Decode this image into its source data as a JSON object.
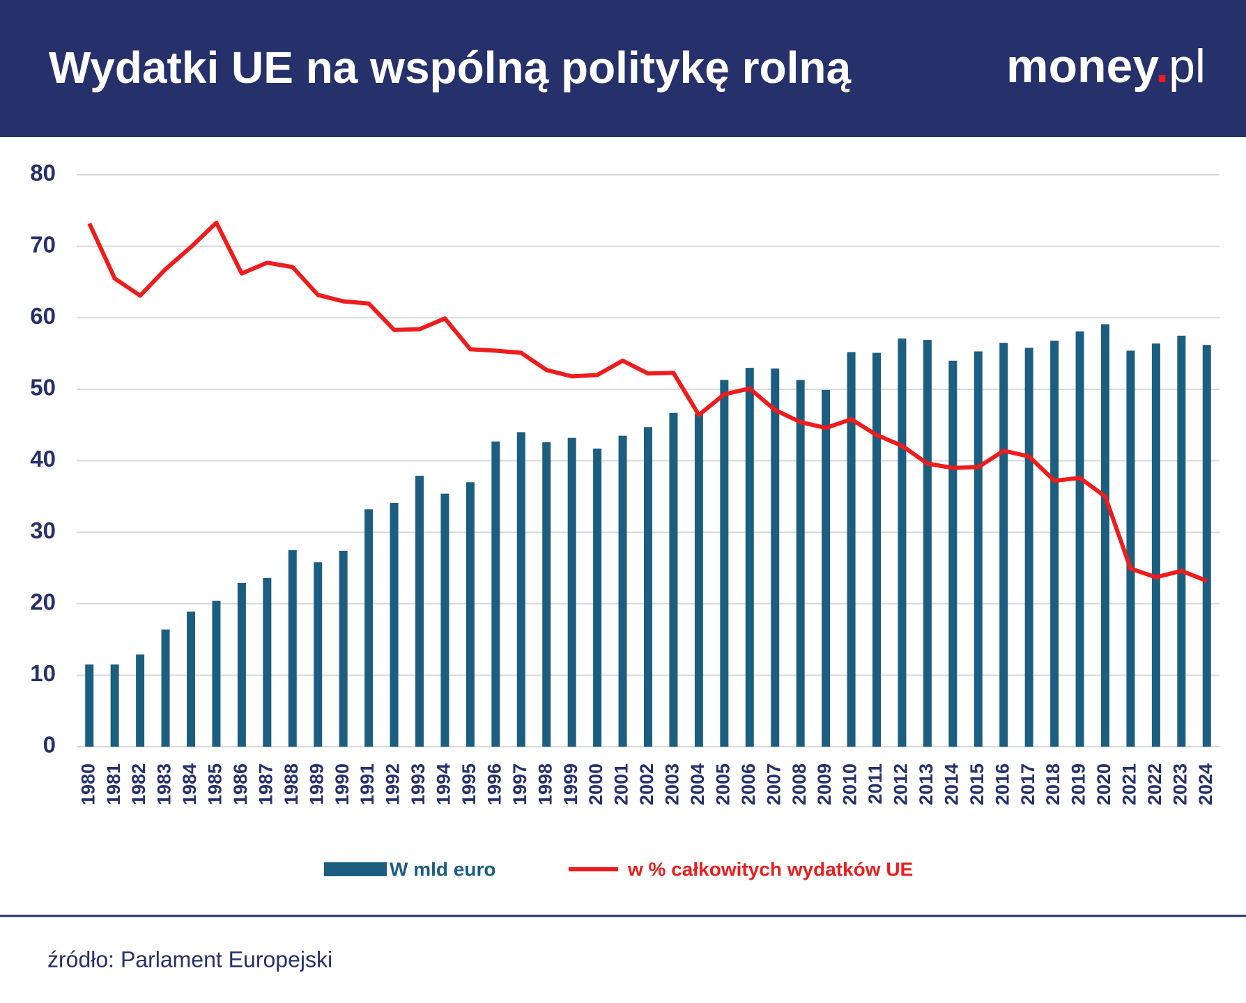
{
  "chart_data": {
    "type": "combo",
    "title": "Wydatki UE na wspólną politykę rolną",
    "logo": {
      "main": "money",
      "dot": ".",
      "suffix": "pl"
    },
    "source": "źródło: Parlament Europejski",
    "categories": [
      "1980",
      "1981",
      "1982",
      "1983",
      "1984",
      "1985",
      "1986",
      "1987",
      "1988",
      "1989",
      "1990",
      "1991",
      "1992",
      "1993",
      "1994",
      "1995",
      "1996",
      "1997",
      "1998",
      "1999",
      "2000",
      "2001",
      "2002",
      "2003",
      "2004",
      "2005",
      "2006",
      "2007",
      "2008",
      "2009",
      "2010",
      "2011",
      "2012",
      "2013",
      "2014",
      "2015",
      "2016",
      "2017",
      "2018",
      "2019",
      "2020",
      "2021",
      "2022",
      "2023",
      "2024"
    ],
    "series": [
      {
        "name": "W mld euro",
        "type": "bar",
        "color": "#1b5e80",
        "values": [
          11.5,
          11.5,
          12.9,
          16.4,
          18.9,
          20.4,
          22.9,
          23.6,
          27.5,
          25.8,
          27.4,
          33.2,
          34.1,
          37.9,
          35.4,
          37.0,
          42.7,
          44.0,
          42.6,
          43.2,
          41.7,
          43.5,
          44.7,
          46.7,
          46.6,
          51.3,
          53.0,
          52.9,
          51.3,
          49.9,
          55.2,
          55.1,
          57.1,
          56.9,
          54.0,
          55.3,
          56.5,
          55.8,
          56.8,
          58.1,
          59.1,
          55.4,
          56.4,
          57.5,
          56.2
        ]
      },
      {
        "name": "w % całkowitych wydatków UE",
        "type": "line",
        "color": "#ee1c1c",
        "values": [
          73.2,
          65.5,
          63.1,
          66.8,
          69.9,
          73.3,
          66.2,
          67.7,
          67.1,
          63.2,
          62.3,
          62.0,
          58.3,
          58.4,
          59.9,
          55.6,
          55.4,
          55.1,
          52.7,
          51.8,
          52.0,
          54.0,
          52.2,
          52.3,
          46.4,
          49.3,
          50.1,
          47.1,
          45.4,
          44.6,
          45.8,
          43.6,
          42.1,
          39.6,
          39.0,
          39.1,
          41.4,
          40.6,
          37.2,
          37.6,
          35.0,
          24.9,
          23.7,
          24.6,
          23.2
        ]
      }
    ],
    "ylim": [
      0,
      80
    ],
    "yticks": [
      0,
      10,
      20,
      30,
      40,
      50,
      60,
      70,
      80
    ],
    "grid": true
  }
}
